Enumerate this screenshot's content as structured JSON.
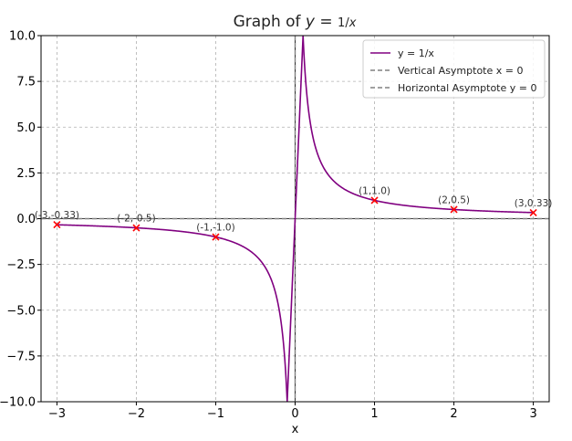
{
  "chart_data": {
    "type": "line",
    "title": "Graph of y = 1/x",
    "xlabel": "x",
    "ylabel": "",
    "xlim": [
      -3.2,
      3.2
    ],
    "ylim": [
      -10.0,
      10.0
    ],
    "xticks": [
      -3,
      -2,
      -1,
      0,
      1,
      2,
      3
    ],
    "xtick_labels": [
      "−3",
      "−2",
      "−1",
      "0",
      "1",
      "2",
      "3"
    ],
    "yticks": [
      10.0,
      7.5,
      5.0,
      2.5,
      0.0,
      -2.5,
      -5.0,
      -7.5,
      -10.0
    ],
    "ytick_labels": [
      "10.0",
      "7.5",
      "5.0",
      "2.5",
      "0.0",
      "−2.5",
      "−5.0",
      "−7.5",
      "−10.0"
    ],
    "grid": true,
    "legend_position": "top-right",
    "series": [
      {
        "name": "y = 1/x",
        "function": "1/x",
        "color": "#800080"
      }
    ],
    "asymptotes": [
      {
        "name": "Vertical Asymptote x = 0",
        "orientation": "vertical",
        "value": 0,
        "color": "#808080"
      },
      {
        "name": "Horizontal Asymptote y = 0",
        "orientation": "horizontal",
        "value": 0,
        "color": "#808080"
      }
    ],
    "points": [
      {
        "x": -3,
        "y": -0.33,
        "label": "(-3,-0.33)"
      },
      {
        "x": -2,
        "y": -0.5,
        "label": "(-2,-0.5)"
      },
      {
        "x": -1,
        "y": -1.0,
        "label": "(-1,-1.0)"
      },
      {
        "x": 1,
        "y": 1.0,
        "label": "(1,1.0)"
      },
      {
        "x": 2,
        "y": 0.5,
        "label": "(2,0.5)"
      },
      {
        "x": 3,
        "y": 0.33,
        "label": "(3,0.33)"
      }
    ],
    "point_color": "#ff0000"
  }
}
